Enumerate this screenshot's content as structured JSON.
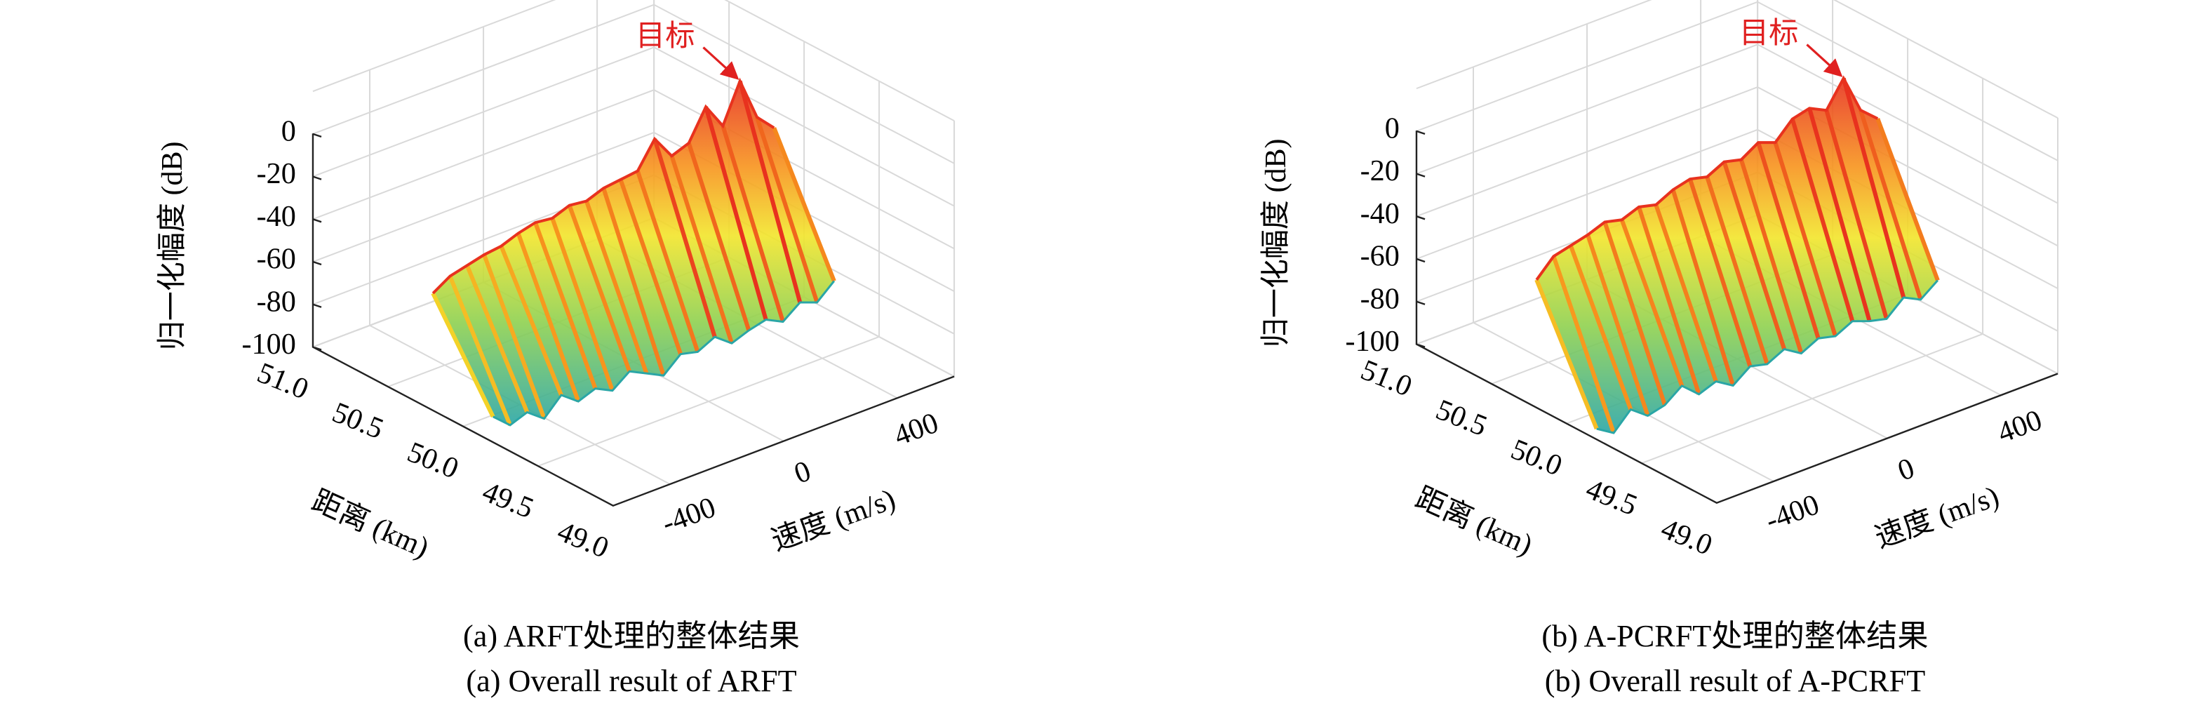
{
  "chart_data": [
    {
      "type": "surface3d",
      "xlabel": "距离 (km)",
      "ylabel": "速度 (m/s)",
      "zlabel": "归一化幅度 (dB)",
      "annotation": "目标",
      "caption": [
        "(a) ARFT处理的整体结果",
        "(a) Overall result of ARFT"
      ],
      "xlim": [
        49,
        51
      ],
      "xticks": [
        {
          "value": 51,
          "label": "51.0"
        },
        {
          "value": 50.5,
          "label": "50.5"
        },
        {
          "value": 50,
          "label": "50.0"
        },
        {
          "value": 49.5,
          "label": "49.5"
        },
        {
          "value": 49,
          "label": "49.0"
        }
      ],
      "ylim": [
        -600,
        600
      ],
      "yticks": [
        -400,
        0,
        400
      ],
      "zlim": [
        -100,
        20
      ],
      "zticks": [
        0,
        -20,
        -40,
        -60,
        -80,
        -100
      ],
      "grid": true,
      "ridge_x": [
        49.8,
        50.2
      ],
      "surface": {
        "y": [
          -600,
          -540,
          -480,
          -420,
          -360,
          -300,
          -240,
          -180,
          -120,
          -60,
          0,
          60,
          120,
          180,
          240,
          300,
          360,
          420,
          480,
          540,
          600
        ],
        "top": [
          -45,
          -40,
          -38,
          -36,
          -35,
          -32,
          -30,
          -31,
          -28,
          -29,
          -26,
          -25,
          -24,
          -12,
          -23,
          -20,
          -6,
          -18,
          0,
          -20,
          -28
        ],
        "bottom": [
          -88,
          -95,
          -92,
          -98,
          -90,
          -96,
          -93,
          -97,
          -91,
          -95,
          -99,
          -92,
          -94,
          -90,
          -96,
          -93,
          -91,
          -95,
          -89,
          -92,
          -85
        ]
      }
    },
    {
      "type": "surface3d",
      "xlabel": "距离 (km)",
      "ylabel": "速度 (m/s)",
      "zlabel": "归一化幅度 (dB)",
      "annotation": "目标",
      "caption": [
        "(b) A-PCRFT处理的整体结果",
        "(b) Overall result of A-PCRFT"
      ],
      "xlim": [
        49,
        51
      ],
      "xticks": [
        {
          "value": 51,
          "label": "51.0"
        },
        {
          "value": 50.5,
          "label": "50.5"
        },
        {
          "value": 50,
          "label": "50.0"
        },
        {
          "value": 49.5,
          "label": "49.5"
        },
        {
          "value": 49,
          "label": "49.0"
        }
      ],
      "ylim": [
        -600,
        600
      ],
      "yticks": [
        -400,
        0,
        400
      ],
      "zlim": [
        -100,
        20
      ],
      "zticks": [
        0,
        -20,
        -40,
        -60,
        -80,
        -100
      ],
      "grid": true,
      "ridge_x": [
        49.8,
        50.2
      ],
      "surface": {
        "y": [
          -600,
          -540,
          -480,
          -420,
          -360,
          -300,
          -240,
          -180,
          -120,
          -60,
          0,
          60,
          120,
          180,
          240,
          300,
          360,
          420,
          480,
          540,
          600
        ],
        "top": [
          -40,
          -32,
          -30,
          -28,
          -25,
          -27,
          -24,
          -26,
          -22,
          -20,
          -22,
          -18,
          -20,
          -15,
          -18,
          -10,
          -8,
          -12,
          0,
          -18,
          -25
        ],
        "bottom": [
          -95,
          -100,
          -92,
          -98,
          -96,
          -90,
          -97,
          -94,
          -99,
          -93,
          -95,
          -91,
          -96,
          -92,
          -94,
          -90,
          -93,
          -95,
          -88,
          -92,
          -86
        ]
      }
    }
  ]
}
